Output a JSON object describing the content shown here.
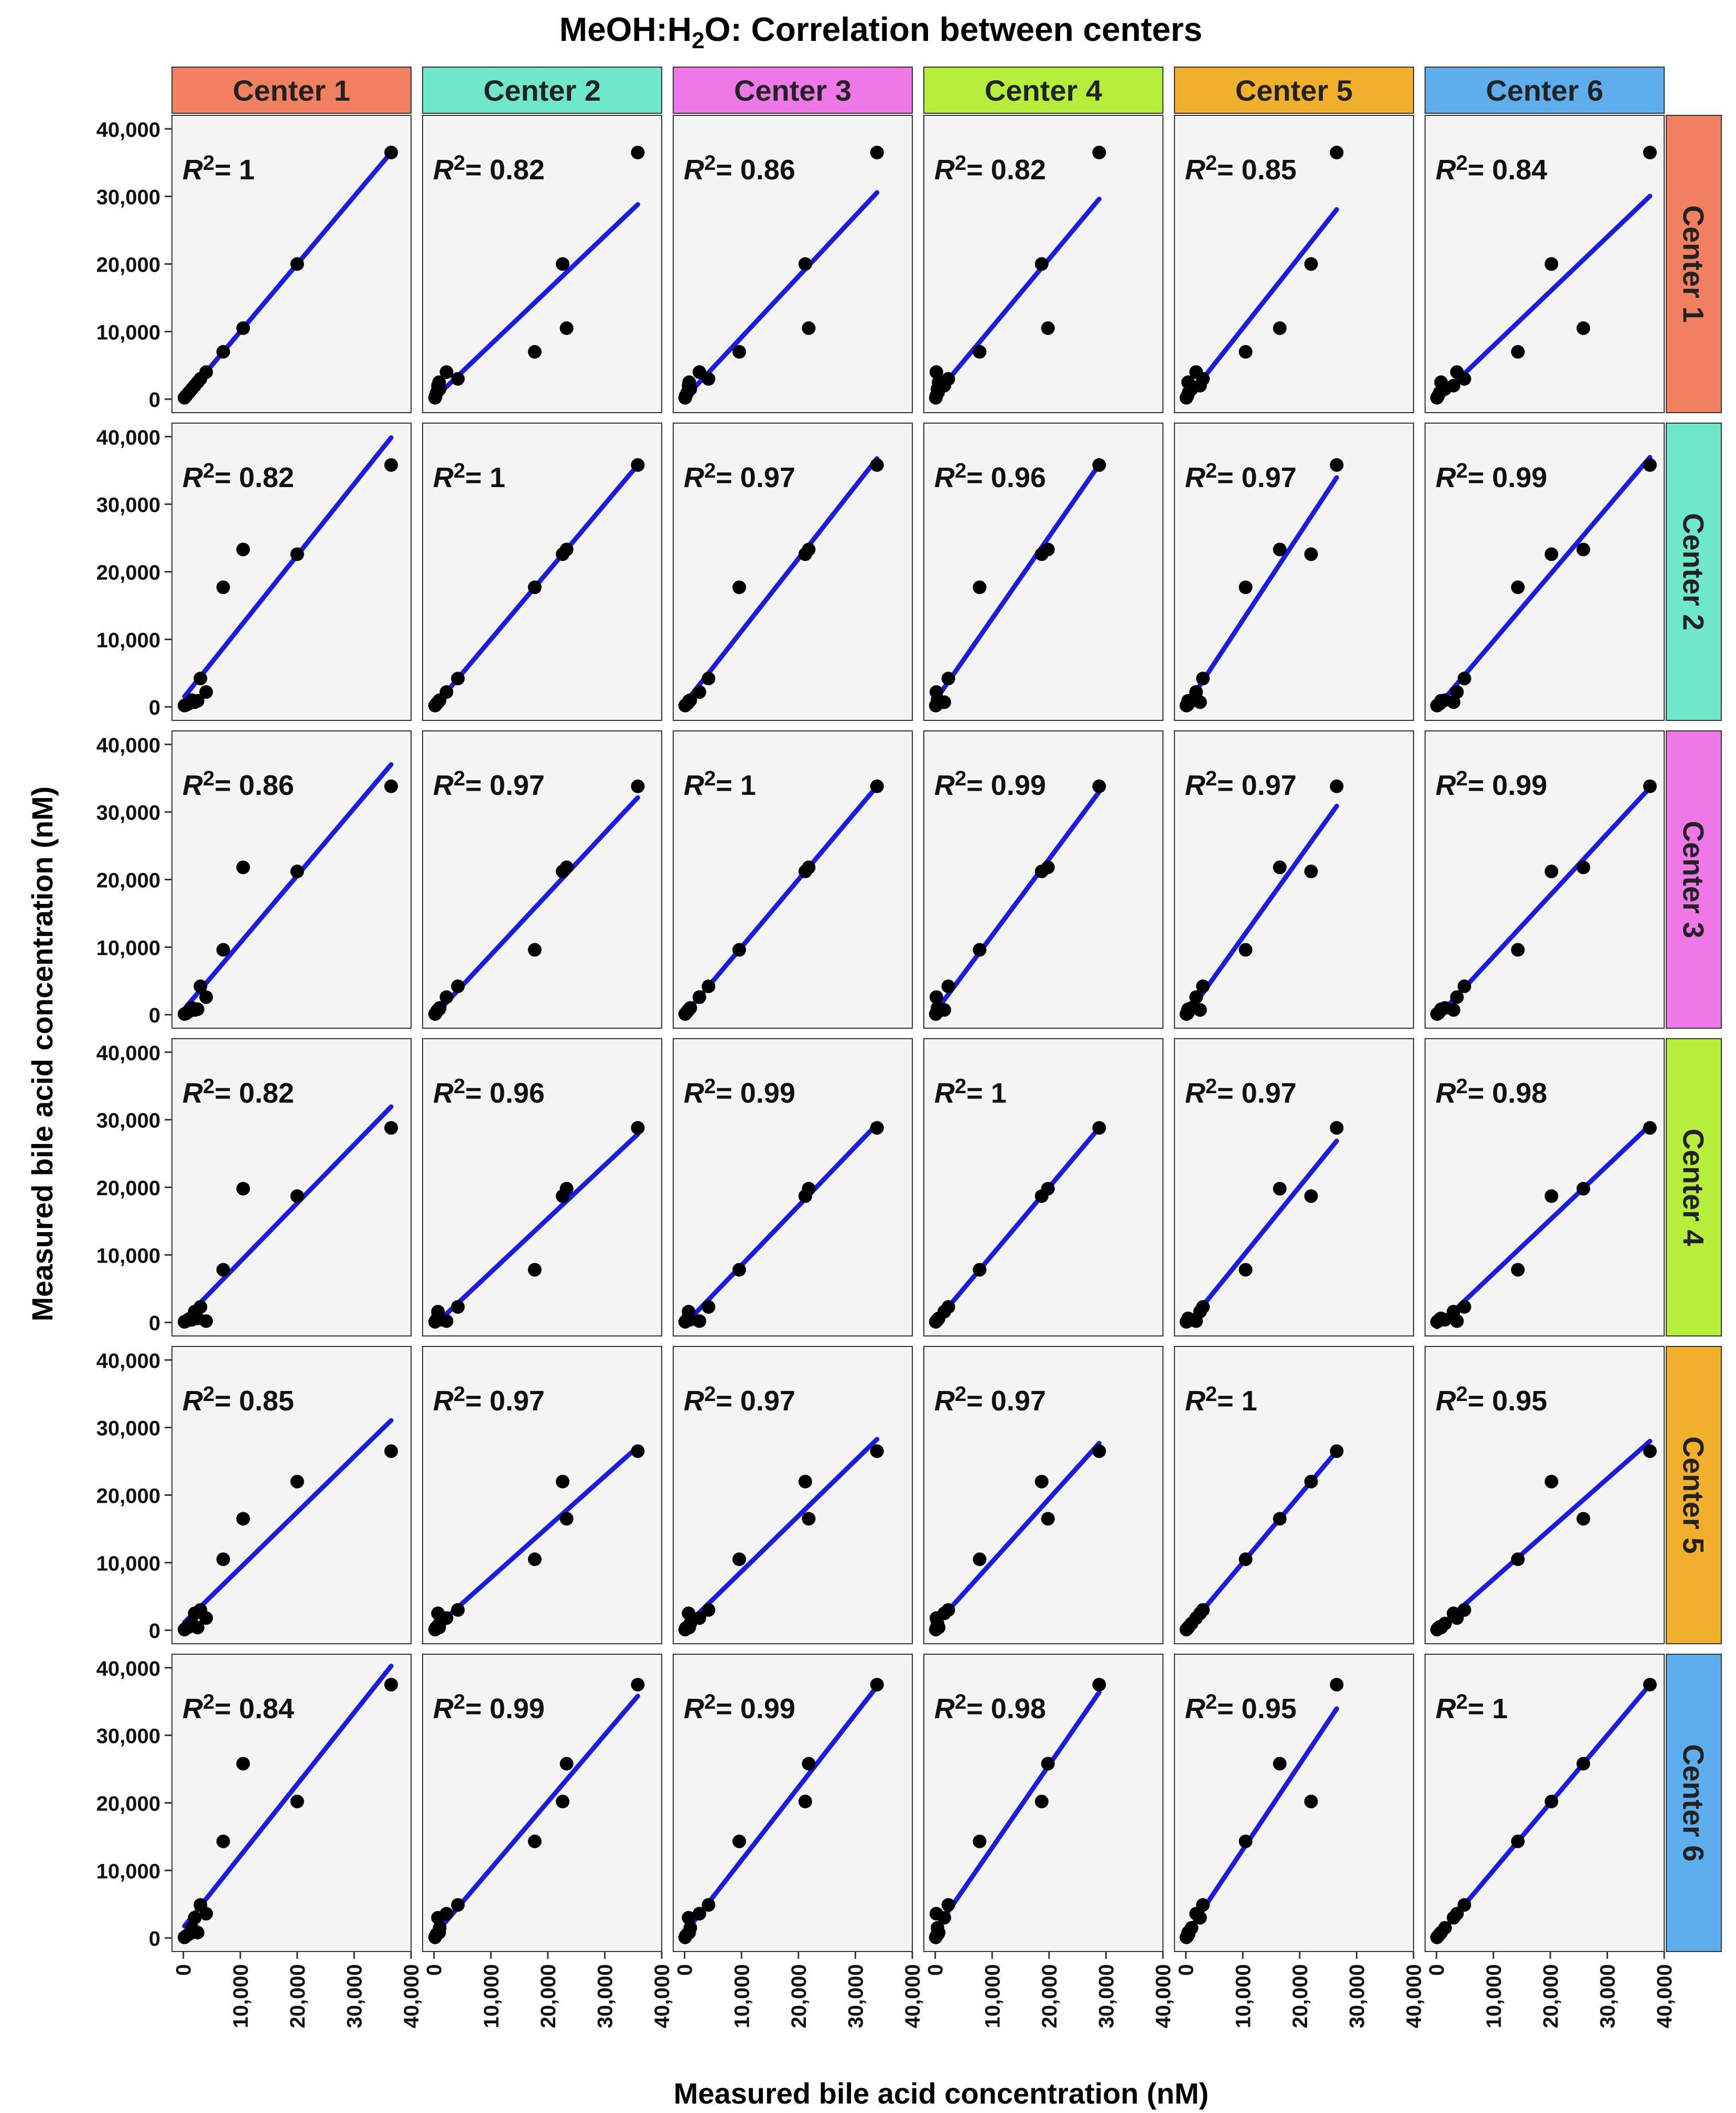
{
  "chart_data": {
    "type": "scatter",
    "title_main": "MeOH:H",
    "title_sub": "2",
    "title_rest": "O:  Correlation between centers",
    "xlabel": "Measured bile acid concentration (nM)",
    "ylabel": "Measured bile acid concentration (nM)",
    "xlim": [
      -2000,
      40000
    ],
    "ylim": [
      -2000,
      42000
    ],
    "x_ticks": [
      0,
      10000,
      20000,
      30000,
      40000
    ],
    "x_tick_labels": [
      "0",
      "10,000",
      "20,000",
      "30,000",
      "40,000"
    ],
    "y_ticks": [
      0,
      10000,
      20000,
      30000,
      40000
    ],
    "y_tick_labels": [
      "0",
      "10,000",
      "20,000",
      "30,000",
      "40,000"
    ],
    "centers": [
      "Center 1",
      "Center 2",
      "Center 3",
      "Center 4",
      "Center 5",
      "Center 6"
    ],
    "center_colors": [
      "#f08060",
      "#6ee8c8",
      "#ee78e8",
      "#b6ee3c",
      "#f0b02c",
      "#5eaeee"
    ],
    "point_color": "#000000",
    "line_color": "#1c1ce0",
    "panel_bg": "#f4f4f4",
    "r2_prefix": "R",
    "r2_exp": "2",
    "r2_eq": "= ",
    "r2": [
      [
        "1",
        "0.82",
        "0.86",
        "0.82",
        "0.85",
        "0.84"
      ],
      [
        "0.82",
        "1",
        "0.97",
        "0.96",
        "0.97",
        "0.99"
      ],
      [
        "0.86",
        "0.97",
        "1",
        "0.99",
        "0.97",
        "0.99"
      ],
      [
        "0.82",
        "0.96",
        "0.99",
        "1",
        "0.97",
        "0.98"
      ],
      [
        "0.85",
        "0.97",
        "0.97",
        "0.97",
        "1",
        "0.95"
      ],
      [
        "0.84",
        "0.99",
        "0.99",
        "0.98",
        "0.95",
        "1"
      ]
    ],
    "concentrations": [
      [
        36500,
        20000,
        10500,
        7000,
        4000,
        3000,
        2500,
        2000,
        1500,
        1000,
        500,
        200
      ],
      [
        35800,
        22600,
        23300,
        17700,
        2200,
        4200,
        900,
        700,
        1000,
        500,
        300,
        200
      ],
      [
        33800,
        21200,
        21800,
        9600,
        2600,
        4200,
        800,
        700,
        1000,
        500,
        200,
        100
      ],
      [
        28800,
        18700,
        19800,
        7800,
        200,
        2300,
        600,
        1600,
        400,
        500,
        200,
        100
      ],
      [
        26500,
        22000,
        16500,
        10500,
        1800,
        3000,
        400,
        2500,
        1000,
        500,
        300,
        100
      ],
      [
        37500,
        20200,
        25800,
        14300,
        3600,
        4900,
        800,
        3000,
        1500,
        600,
        300,
        100
      ]
    ]
  }
}
